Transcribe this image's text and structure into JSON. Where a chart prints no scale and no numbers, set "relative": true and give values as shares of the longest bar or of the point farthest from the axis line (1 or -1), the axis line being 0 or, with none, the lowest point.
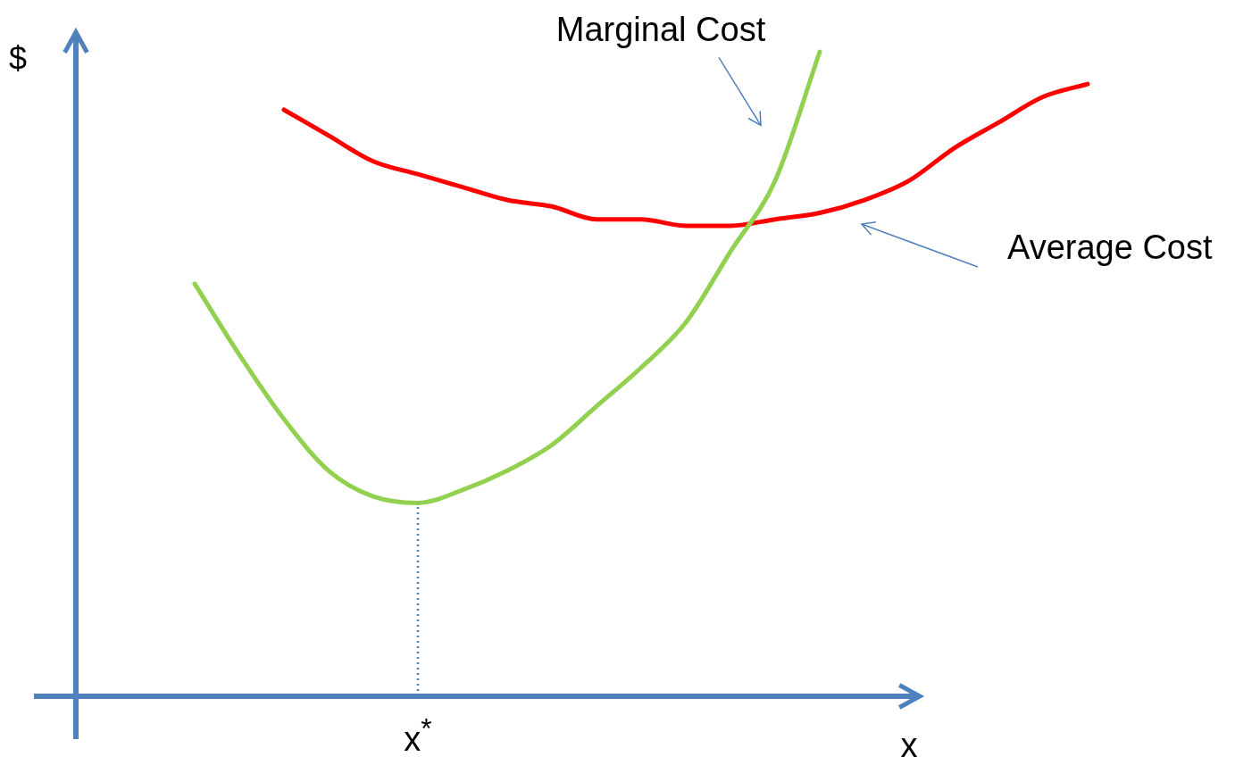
{
  "chart_data": {
    "type": "line",
    "relative": true,
    "xlabel": "x",
    "ylabel": "$",
    "marker": "none",
    "categories": [
      null,
      null,
      null,
      null,
      null,
      null,
      null,
      null,
      null,
      null,
      null,
      null,
      null,
      null,
      null,
      null,
      null,
      null,
      null,
      null,
      null
    ],
    "series": [
      {
        "name": "Marginal Cost",
        "color": "#92d050",
        "values": [
          0.64,
          0.53,
          0.43,
          0.35,
          0.31,
          0.3,
          0.32,
          0.35,
          0.39,
          0.45,
          0.51,
          0.58,
          0.69,
          0.8,
          1,
          null,
          null,
          null,
          null,
          null,
          null
        ]
      },
      {
        "name": "Average Cost",
        "color": "#ff0000",
        "values": [
          null,
          null,
          0.91,
          0.87,
          0.83,
          0.81,
          0.79,
          0.77,
          0.76,
          0.74,
          0.74,
          0.73,
          0.73,
          0.74,
          0.75,
          0.77,
          0.8,
          0.85,
          0.89,
          0.93,
          0.95
        ]
      }
    ],
    "ref_lines": [
      {
        "axis": "x",
        "label": "x$^{*}$",
        "line_style": "dotted",
        "color": "#4f81bd"
      }
    ]
  }
}
